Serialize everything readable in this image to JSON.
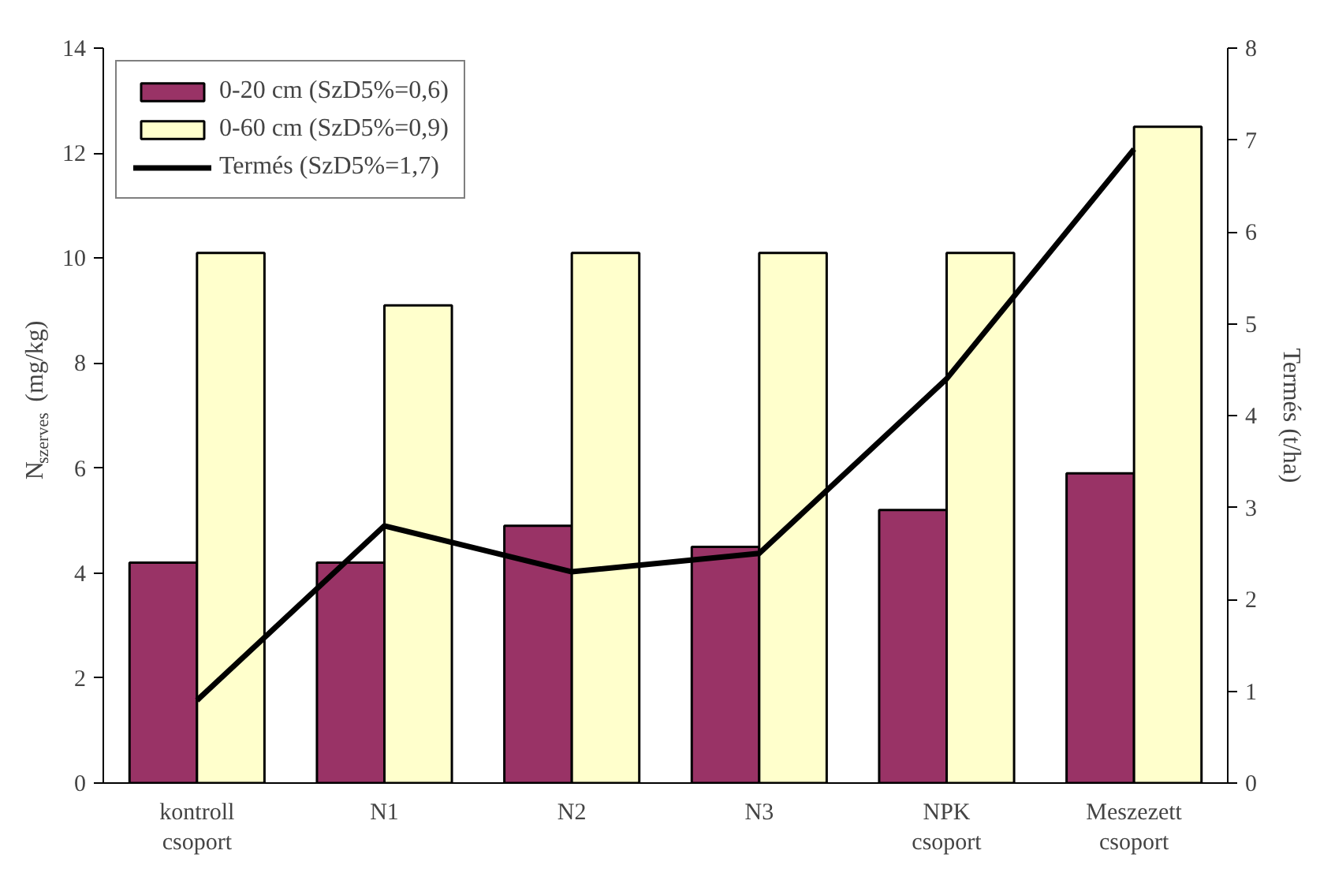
{
  "chart_data": {
    "type": "bar",
    "ylabel": "N$_{szerves}$ (mg/kg)",
    "y2label": "Termés (t/ha)",
    "categories": [
      "kontroll csoport",
      "N1",
      "N2",
      "N3",
      "NPK csoport",
      "Meszezett csoport"
    ],
    "series": [
      {
        "name": "0-20 cm (SzD5%=0,6)",
        "color": "#993366",
        "values": [
          4.2,
          4.2,
          4.9,
          4.5,
          5.2,
          5.9
        ]
      },
      {
        "name": "0-60 cm (SzD5%=0,9)",
        "color": "#ffffcc",
        "values": [
          10.1,
          9.1,
          10.1,
          10.1,
          10.1,
          12.5
        ]
      },
      {
        "name": "Termés (SzD5%=1,7)",
        "type": "line",
        "axis": "y2",
        "color": "#000000",
        "values": [
          0.9,
          2.8,
          2.3,
          2.5,
          4.4,
          6.9
        ]
      }
    ],
    "ylim": [
      0,
      14
    ],
    "yticks": [
      0,
      2,
      4,
      6,
      8,
      10,
      12,
      14
    ],
    "y2lim": [
      0,
      8
    ],
    "y2ticks": [
      0,
      1,
      2,
      3,
      4,
      5,
      6,
      7,
      8
    ],
    "grid": false,
    "legend": "top left",
    "marker": "none",
    "line_style": "solid"
  }
}
